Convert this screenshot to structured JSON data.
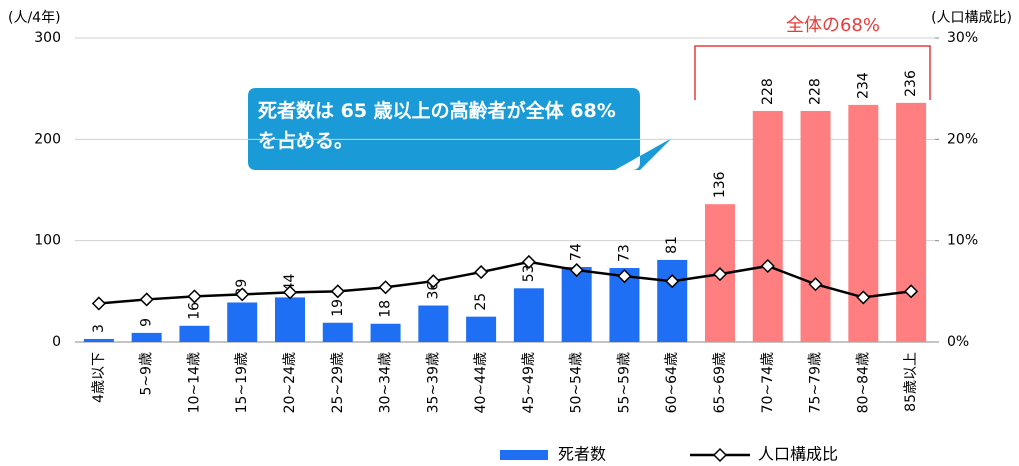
{
  "chart_data": {
    "type": "bar_line",
    "categories": [
      "4歳以下",
      "5~9歳",
      "10~14歳",
      "15~19歳",
      "20~24歳",
      "25~29歳",
      "30~34歳",
      "35~39歳",
      "40~44歳",
      "45~49歳",
      "50~54歳",
      "55~59歳",
      "60~64歳",
      "65~69歳",
      "70~74歳",
      "75~79歳",
      "80~84歳",
      "85歳以上"
    ],
    "series": [
      {
        "name": "死者数",
        "type": "bar",
        "color": "#1f6ff5",
        "colors": [
          "#1f6ff5",
          "#1f6ff5",
          "#1f6ff5",
          "#1f6ff5",
          "#1f6ff5",
          "#1f6ff5",
          "#1f6ff5",
          "#1f6ff5",
          "#1f6ff5",
          "#1f6ff5",
          "#1f6ff5",
          "#1f6ff5",
          "#1f6ff5",
          "#ff7f80",
          "#ff7f80",
          "#ff7f80",
          "#ff7f80",
          "#ff7f80"
        ],
        "values": [
          3,
          9,
          16,
          39,
          44,
          19,
          18,
          36,
          25,
          53,
          74,
          73,
          81,
          136,
          228,
          228,
          234,
          236
        ]
      },
      {
        "name": "人口構成比",
        "type": "line",
        "axis": "y2",
        "color": "#000000",
        "values": [
          3.8,
          4.2,
          4.5,
          4.7,
          4.9,
          5.0,
          5.4,
          6.0,
          6.9,
          7.9,
          7.1,
          6.5,
          6.0,
          6.7,
          7.5,
          5.7,
          4.4,
          5.0
        ]
      }
    ],
    "ylabel": "(人/4年)",
    "y2label": "(人口構成比)",
    "ylim": [
      0,
      300
    ],
    "yticks": [
      0,
      100,
      200,
      300
    ],
    "y2lim": [
      0,
      30
    ],
    "y2ticks": [
      {
        "value": 0,
        "label": "0%"
      },
      {
        "value": 10,
        "label": "10%"
      },
      {
        "value": 20,
        "label": "20%"
      },
      {
        "value": 30,
        "label": "30%"
      }
    ],
    "grid": true,
    "annotation": "全体の68%",
    "callout": "死者数は 65 歳以上の高齢者が全体 68%を占める。",
    "legend": "bottom"
  }
}
